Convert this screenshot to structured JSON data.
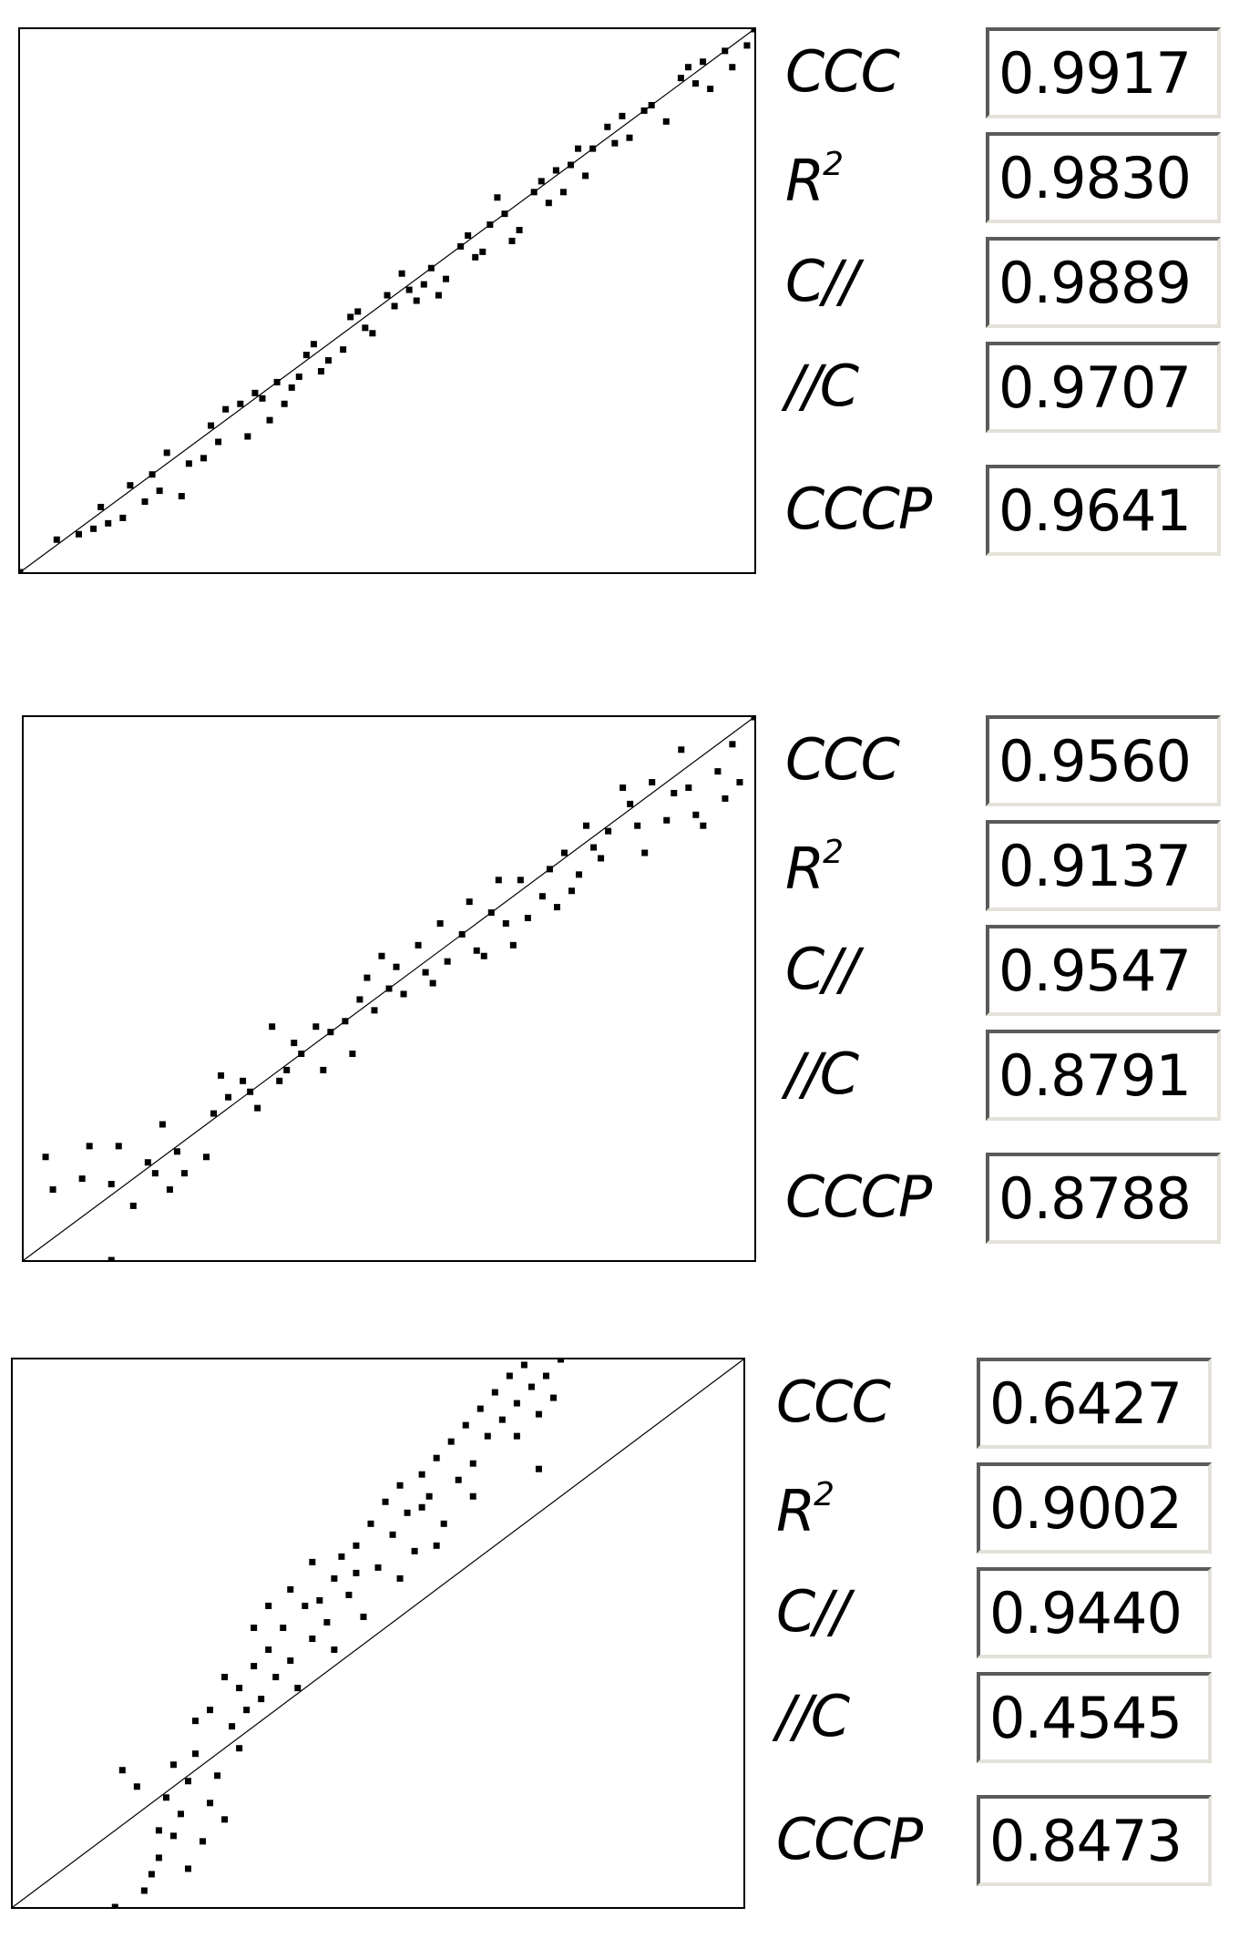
{
  "chart_data": [
    {
      "type": "scatter",
      "identity_line": true,
      "grid": false,
      "xlim": [
        0,
        1
      ],
      "ylim": [
        0,
        1
      ],
      "points": [
        [
          0.0,
          0.0
        ],
        [
          0.05,
          0.06
        ],
        [
          0.08,
          0.07
        ],
        [
          0.1,
          0.08
        ],
        [
          0.11,
          0.12
        ],
        [
          0.12,
          0.09
        ],
        [
          0.14,
          0.1
        ],
        [
          0.15,
          0.16
        ],
        [
          0.17,
          0.13
        ],
        [
          0.18,
          0.18
        ],
        [
          0.19,
          0.15
        ],
        [
          0.2,
          0.22
        ],
        [
          0.22,
          0.14
        ],
        [
          0.23,
          0.2
        ],
        [
          0.25,
          0.21
        ],
        [
          0.26,
          0.27
        ],
        [
          0.27,
          0.24
        ],
        [
          0.28,
          0.3
        ],
        [
          0.3,
          0.31
        ],
        [
          0.31,
          0.25
        ],
        [
          0.32,
          0.33
        ],
        [
          0.33,
          0.32
        ],
        [
          0.34,
          0.28
        ],
        [
          0.35,
          0.35
        ],
        [
          0.36,
          0.31
        ],
        [
          0.37,
          0.34
        ],
        [
          0.38,
          0.36
        ],
        [
          0.39,
          0.4
        ],
        [
          0.4,
          0.42
        ],
        [
          0.41,
          0.37
        ],
        [
          0.42,
          0.39
        ],
        [
          0.44,
          0.41
        ],
        [
          0.45,
          0.47
        ],
        [
          0.46,
          0.48
        ],
        [
          0.47,
          0.45
        ],
        [
          0.48,
          0.44
        ],
        [
          0.5,
          0.51
        ],
        [
          0.51,
          0.49
        ],
        [
          0.52,
          0.55
        ],
        [
          0.53,
          0.52
        ],
        [
          0.54,
          0.5
        ],
        [
          0.55,
          0.53
        ],
        [
          0.56,
          0.56
        ],
        [
          0.57,
          0.51
        ],
        [
          0.58,
          0.54
        ],
        [
          0.6,
          0.6
        ],
        [
          0.61,
          0.62
        ],
        [
          0.62,
          0.58
        ],
        [
          0.63,
          0.59
        ],
        [
          0.64,
          0.64
        ],
        [
          0.65,
          0.69
        ],
        [
          0.66,
          0.66
        ],
        [
          0.67,
          0.61
        ],
        [
          0.68,
          0.63
        ],
        [
          0.7,
          0.7
        ],
        [
          0.71,
          0.72
        ],
        [
          0.72,
          0.68
        ],
        [
          0.73,
          0.74
        ],
        [
          0.74,
          0.7
        ],
        [
          0.75,
          0.75
        ],
        [
          0.76,
          0.78
        ],
        [
          0.77,
          0.73
        ],
        [
          0.78,
          0.78
        ],
        [
          0.8,
          0.82
        ],
        [
          0.81,
          0.79
        ],
        [
          0.82,
          0.84
        ],
        [
          0.83,
          0.8
        ],
        [
          0.85,
          0.85
        ],
        [
          0.86,
          0.86
        ],
        [
          0.88,
          0.83
        ],
        [
          0.9,
          0.91
        ],
        [
          0.91,
          0.93
        ],
        [
          0.92,
          0.9
        ],
        [
          0.93,
          0.94
        ],
        [
          0.94,
          0.89
        ],
        [
          0.96,
          0.96
        ],
        [
          0.97,
          0.93
        ],
        [
          0.99,
          0.97
        ],
        [
          1.0,
          1.0
        ]
      ],
      "stats": [
        {
          "label": "CCC",
          "value": "0.9917"
        },
        {
          "label": "R",
          "superscript": "2",
          "value": "0.9830"
        },
        {
          "label": "C//",
          "value": "0.9889"
        },
        {
          "label": "//C",
          "value": "0.9707"
        },
        {
          "label": "CCCP",
          "value": "0.9641"
        }
      ]
    },
    {
      "type": "scatter",
      "identity_line": true,
      "grid": false,
      "xlim": [
        0,
        1
      ],
      "ylim": [
        0,
        1
      ],
      "points": [
        [
          0.03,
          0.19
        ],
        [
          0.04,
          0.13
        ],
        [
          0.08,
          0.15
        ],
        [
          0.09,
          0.21
        ],
        [
          0.12,
          0.14
        ],
        [
          0.13,
          0.21
        ],
        [
          0.15,
          0.1
        ],
        [
          0.17,
          0.18
        ],
        [
          0.18,
          0.16
        ],
        [
          0.19,
          0.25
        ],
        [
          0.2,
          0.13
        ],
        [
          0.21,
          0.2
        ],
        [
          0.22,
          0.16
        ],
        [
          0.25,
          0.19
        ],
        [
          0.26,
          0.27
        ],
        [
          0.27,
          0.34
        ],
        [
          0.28,
          0.3
        ],
        [
          0.3,
          0.33
        ],
        [
          0.31,
          0.31
        ],
        [
          0.32,
          0.28
        ],
        [
          0.34,
          0.43
        ],
        [
          0.35,
          0.33
        ],
        [
          0.36,
          0.35
        ],
        [
          0.37,
          0.4
        ],
        [
          0.38,
          0.38
        ],
        [
          0.4,
          0.43
        ],
        [
          0.41,
          0.35
        ],
        [
          0.42,
          0.42
        ],
        [
          0.44,
          0.44
        ],
        [
          0.45,
          0.38
        ],
        [
          0.46,
          0.48
        ],
        [
          0.47,
          0.52
        ],
        [
          0.48,
          0.46
        ],
        [
          0.49,
          0.56
        ],
        [
          0.5,
          0.5
        ],
        [
          0.51,
          0.54
        ],
        [
          0.52,
          0.49
        ],
        [
          0.54,
          0.58
        ],
        [
          0.55,
          0.53
        ],
        [
          0.56,
          0.51
        ],
        [
          0.57,
          0.62
        ],
        [
          0.58,
          0.55
        ],
        [
          0.6,
          0.6
        ],
        [
          0.61,
          0.66
        ],
        [
          0.62,
          0.57
        ],
        [
          0.63,
          0.56
        ],
        [
          0.64,
          0.64
        ],
        [
          0.65,
          0.7
        ],
        [
          0.66,
          0.62
        ],
        [
          0.67,
          0.58
        ],
        [
          0.68,
          0.7
        ],
        [
          0.69,
          0.63
        ],
        [
          0.71,
          0.67
        ],
        [
          0.72,
          0.72
        ],
        [
          0.73,
          0.65
        ],
        [
          0.74,
          0.75
        ],
        [
          0.75,
          0.68
        ],
        [
          0.76,
          0.71
        ],
        [
          0.77,
          0.8
        ],
        [
          0.78,
          0.76
        ],
        [
          0.79,
          0.74
        ],
        [
          0.8,
          0.79
        ],
        [
          0.82,
          0.87
        ],
        [
          0.83,
          0.84
        ],
        [
          0.84,
          0.8
        ],
        [
          0.85,
          0.75
        ],
        [
          0.86,
          0.88
        ],
        [
          0.88,
          0.81
        ],
        [
          0.89,
          0.86
        ],
        [
          0.9,
          0.94
        ],
        [
          0.91,
          0.87
        ],
        [
          0.92,
          0.82
        ],
        [
          0.93,
          0.8
        ],
        [
          0.95,
          0.9
        ],
        [
          0.96,
          0.85
        ],
        [
          0.97,
          0.95
        ],
        [
          0.98,
          0.88
        ],
        [
          1.0,
          1.0
        ],
        [
          0.12,
          0.0
        ]
      ],
      "stats": [
        {
          "label": "CCC",
          "value": "0.9560"
        },
        {
          "label": "R",
          "superscript": "2",
          "value": "0.9137"
        },
        {
          "label": "C//",
          "value": "0.9547"
        },
        {
          "label": "//C",
          "value": "0.8791"
        },
        {
          "label": "CCCP",
          "value": "0.8788"
        }
      ]
    },
    {
      "type": "scatter",
      "identity_line": true,
      "grid": false,
      "xlim": [
        0,
        1
      ],
      "ylim": [
        0,
        1
      ],
      "points": [
        [
          0.14,
          0.0
        ],
        [
          0.18,
          0.03
        ],
        [
          0.19,
          0.06
        ],
        [
          0.2,
          0.09
        ],
        [
          0.2,
          0.14
        ],
        [
          0.21,
          0.2
        ],
        [
          0.22,
          0.13
        ],
        [
          0.23,
          0.17
        ],
        [
          0.24,
          0.07
        ],
        [
          0.24,
          0.23
        ],
        [
          0.25,
          0.28
        ],
        [
          0.26,
          0.12
        ],
        [
          0.27,
          0.19
        ],
        [
          0.28,
          0.24
        ],
        [
          0.29,
          0.16
        ],
        [
          0.3,
          0.33
        ],
        [
          0.31,
          0.29
        ],
        [
          0.31,
          0.4
        ],
        [
          0.32,
          0.36
        ],
        [
          0.33,
          0.44
        ],
        [
          0.34,
          0.38
        ],
        [
          0.35,
          0.47
        ],
        [
          0.36,
          0.42
        ],
        [
          0.37,
          0.51
        ],
        [
          0.38,
          0.45
        ],
        [
          0.39,
          0.4
        ],
        [
          0.4,
          0.55
        ],
        [
          0.41,
          0.49
        ],
        [
          0.42,
          0.56
        ],
        [
          0.43,
          0.52
        ],
        [
          0.44,
          0.6
        ],
        [
          0.44,
          0.47
        ],
        [
          0.45,
          0.64
        ],
        [
          0.46,
          0.57
        ],
        [
          0.47,
          0.66
        ],
        [
          0.48,
          0.53
        ],
        [
          0.49,
          0.7
        ],
        [
          0.5,
          0.62
        ],
        [
          0.51,
          0.74
        ],
        [
          0.52,
          0.68
        ],
        [
          0.53,
          0.77
        ],
        [
          0.54,
          0.72
        ],
        [
          0.55,
          0.65
        ],
        [
          0.56,
          0.79
        ],
        [
          0.57,
          0.75
        ],
        [
          0.58,
          0.82
        ],
        [
          0.59,
          0.7
        ],
        [
          0.6,
          0.85
        ],
        [
          0.61,
          0.78
        ],
        [
          0.62,
          0.88
        ],
        [
          0.63,
          0.81
        ],
        [
          0.64,
          0.91
        ],
        [
          0.65,
          0.86
        ],
        [
          0.66,
          0.94
        ],
        [
          0.67,
          0.89
        ],
        [
          0.68,
          0.97
        ],
        [
          0.69,
          0.92
        ],
        [
          0.7,
          0.99
        ],
        [
          0.71,
          0.95
        ],
        [
          0.72,
          0.9
        ],
        [
          0.73,
          0.97
        ],
        [
          0.74,
          0.93
        ],
        [
          0.75,
          1.0
        ],
        [
          0.38,
          0.58
        ],
        [
          0.35,
          0.55
        ],
        [
          0.29,
          0.42
        ],
        [
          0.27,
          0.36
        ],
        [
          0.33,
          0.51
        ],
        [
          0.41,
          0.63
        ],
        [
          0.47,
          0.61
        ],
        [
          0.53,
          0.6
        ],
        [
          0.58,
          0.66
        ],
        [
          0.63,
          0.75
        ],
        [
          0.69,
          0.86
        ],
        [
          0.72,
          0.8
        ],
        [
          0.25,
          0.34
        ],
        [
          0.22,
          0.26
        ],
        [
          0.17,
          0.22
        ],
        [
          0.15,
          0.25
        ],
        [
          0.56,
          0.73
        ]
      ],
      "stats": [
        {
          "label": "CCC",
          "value": "0.6427"
        },
        {
          "label": "R",
          "superscript": "2",
          "value": "0.9002"
        },
        {
          "label": "C//",
          "value": "0.9440"
        },
        {
          "label": "//C",
          "value": "0.4545"
        },
        {
          "label": "CCCP",
          "value": "0.8473"
        }
      ]
    }
  ]
}
